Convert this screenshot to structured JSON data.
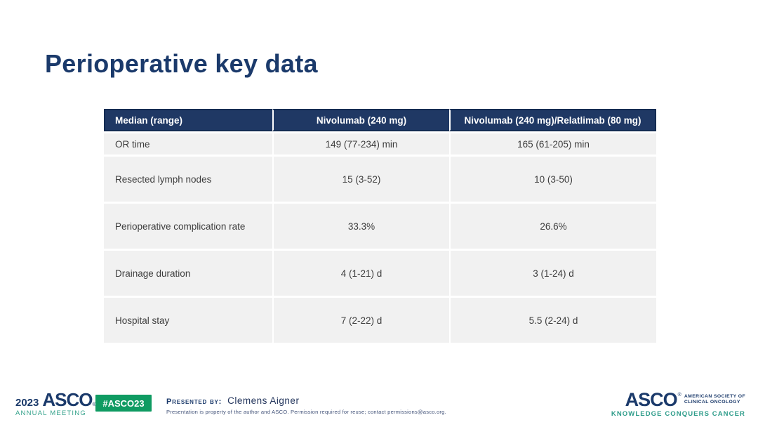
{
  "slide": {
    "title": "Perioperative key data"
  },
  "table": {
    "columns": [
      "Median (range)",
      "Nivolumab (240 mg)",
      "Nivolumab (240 mg)/Relatlimab (80 mg)"
    ],
    "rows": [
      {
        "label": "OR time",
        "nivolumab": "149 (77-234) min",
        "nivo_rela": "165 (61-205) min"
      },
      {
        "label": "Resected lymph nodes",
        "nivolumab": "15 (3-52)",
        "nivo_rela": "10 (3-50)"
      },
      {
        "label": "Perioperative complication rate",
        "nivolumab": "33.3%",
        "nivo_rela": "26.6%"
      },
      {
        "label": "Drainage duration",
        "nivolumab": "4 (1-21) d",
        "nivo_rela": "3 (1-24) d"
      },
      {
        "label": "Hospital stay",
        "nivolumab": "7 (2-22) d",
        "nivo_rela": "5.5 (2-24) d"
      }
    ]
  },
  "footer": {
    "meeting_logo": {
      "year": "2023",
      "org": "ASCO",
      "reg": "®",
      "meeting": "ANNUAL MEETING"
    },
    "hashtag_badge": "#ASCO23",
    "presented_by_label": "Presented by:",
    "presenter_name": "Clemens Aigner",
    "permission_text": "Presentation is property of the author and ASCO. Permission required for reuse; contact permissions@asco.org.",
    "asco_logo": {
      "org": "ASCO",
      "reg": "®",
      "society_line1": "AMERICAN SOCIETY OF",
      "society_line2": "CLINICAL ONCOLOGY",
      "tagline": "KNOWLEDGE CONQUERS CANCER"
    }
  },
  "colors": {
    "navy": "#1b3a6b",
    "table_header_bg": "#1f3864",
    "row_bg": "#f1f1f1",
    "badge_green": "#0f9b62",
    "teal": "#2e9c8a"
  }
}
